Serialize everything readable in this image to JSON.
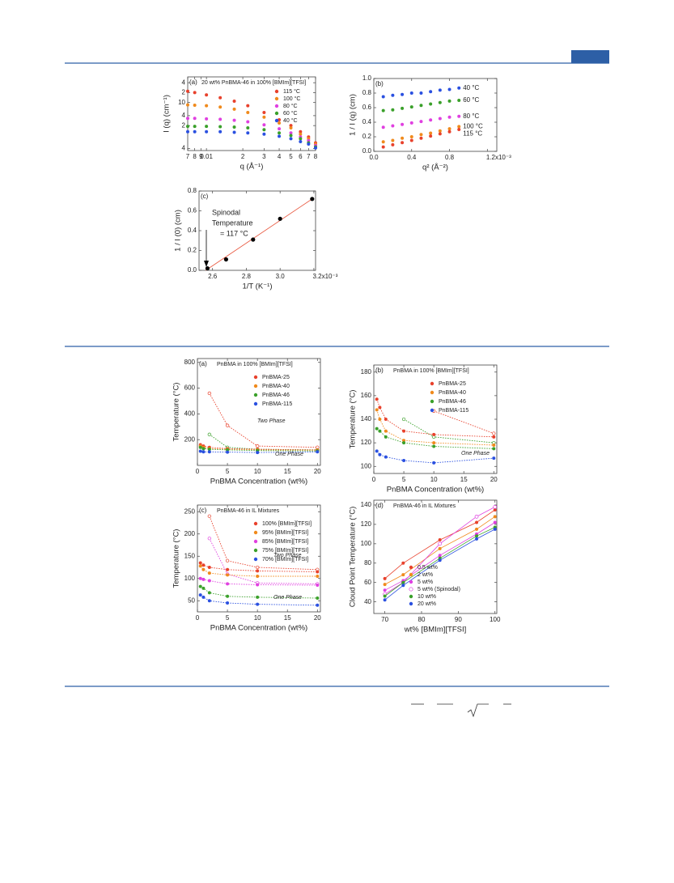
{
  "chart_data": [
    {
      "type": "scatter",
      "panel": "(a)",
      "title": "20 wt% PnBMA-46 in 100% [BMIm][TFSI]",
      "xlabel": "q (Å⁻¹)",
      "ylabel": "I (q) (cm⁻¹)",
      "xscale": "log",
      "yscale": "log",
      "xlim": [
        0.007,
        0.08
      ],
      "ylim": [
        0.35,
        60
      ],
      "xticks": [
        {
          "value": 0.007,
          "label": "7"
        },
        {
          "value": 0.008,
          "label": "8"
        },
        {
          "value": 0.009,
          "label": "9"
        },
        0.01,
        {
          "value": 0.02,
          "label": "2"
        },
        {
          "value": 0.03,
          "label": "3"
        },
        {
          "value": 0.04,
          "label": "4"
        },
        {
          "value": 0.05,
          "label": "5"
        },
        {
          "value": 0.06,
          "label": "6"
        },
        {
          "value": 0.07,
          "label": "7"
        },
        {
          "value": 0.08,
          "label": "8"
        }
      ],
      "yticks": [
        {
          "value": 0.4,
          "label": "4"
        },
        2,
        4,
        10,
        {
          "value": 20,
          "label": "2"
        },
        {
          "value": 40,
          "label": "4"
        }
      ],
      "legend": "upper right",
      "line": "none",
      "x": [
        0.007,
        0.008,
        0.01,
        0.013,
        0.017,
        0.022,
        0.03,
        0.04,
        0.05,
        0.06,
        0.07,
        0.08
      ],
      "series": [
        {
          "name": "115 °C",
          "color": "#e8412c",
          "values": [
            22,
            20,
            17,
            14,
            11,
            8,
            5,
            3,
            2,
            1.3,
            0.9,
            0.6
          ]
        },
        {
          "name": "100 °C",
          "color": "#f08a1c",
          "values": [
            8.5,
            8.3,
            8,
            7.3,
            6.3,
            5,
            3.6,
            2.4,
            1.7,
            1.1,
            0.8,
            0.55
          ]
        },
        {
          "name": "80 °C",
          "color": "#e040e0",
          "values": [
            3.3,
            3.3,
            3.2,
            3.1,
            2.9,
            2.6,
            2.1,
            1.6,
            1.2,
            0.9,
            0.7,
            0.5
          ]
        },
        {
          "name": "60 °C",
          "color": "#3aa02a",
          "values": [
            1.9,
            1.9,
            1.9,
            1.85,
            1.8,
            1.7,
            1.5,
            1.2,
            1.0,
            0.8,
            0.6,
            0.45
          ]
        },
        {
          "name": "40 °C",
          "color": "#2a50e0",
          "values": [
            1.3,
            1.3,
            1.3,
            1.3,
            1.25,
            1.2,
            1.1,
            0.95,
            0.8,
            0.65,
            0.55,
            0.42
          ]
        }
      ]
    },
    {
      "type": "scatter",
      "panel": "(b)",
      "xlabel": "q² (Å⁻²)",
      "ylabel": "1 / I (q) (cm)",
      "xlim": [
        0,
        0.0013
      ],
      "ylim": [
        0,
        1.0
      ],
      "xticks": [
        {
          "value": 0,
          "label": "0.0"
        },
        {
          "value": 0.0004,
          "label": "0.4"
        },
        {
          "value": 0.0008,
          "label": "0.8"
        },
        {
          "value": 0.0012,
          "label": "1.2x10⁻³"
        }
      ],
      "yticks": [
        {
          "value": 0,
          "label": "0.0"
        },
        0.2,
        0.4,
        0.6,
        0.8,
        {
          "value": 1,
          "label": "1.0"
        }
      ],
      "legend": "inline",
      "line": "none",
      "x": [
        0.0001,
        0.0002,
        0.0003,
        0.0004,
        0.0005,
        0.0006,
        0.0007,
        0.0008,
        0.0009
      ],
      "series": [
        {
          "name": "40 °C",
          "color": "#2a50e0",
          "values": [
            0.75,
            0.77,
            0.78,
            0.8,
            0.8,
            0.82,
            0.84,
            0.85,
            0.87
          ]
        },
        {
          "name": "60 °C",
          "color": "#3aa02a",
          "values": [
            0.56,
            0.57,
            0.59,
            0.61,
            0.63,
            0.65,
            0.67,
            0.69,
            0.7
          ]
        },
        {
          "name": "80 °C",
          "color": "#e040e0",
          "values": [
            0.33,
            0.35,
            0.37,
            0.39,
            0.41,
            0.43,
            0.45,
            0.47,
            0.48
          ]
        },
        {
          "name": "100 °C",
          "color": "#f08a1c",
          "values": [
            0.13,
            0.15,
            0.18,
            0.2,
            0.23,
            0.25,
            0.28,
            0.31,
            0.34
          ]
        },
        {
          "name": "115 °C",
          "color": "#e8412c",
          "values": [
            0.06,
            0.09,
            0.12,
            0.15,
            0.18,
            0.21,
            0.24,
            0.27,
            0.3
          ]
        }
      ]
    },
    {
      "type": "scatter",
      "panel": "(c)",
      "xlabel": "1/T (K⁻¹)",
      "ylabel": "1 / I (0) (cm)",
      "xlim": [
        0.00252,
        0.00321
      ],
      "ylim": [
        0,
        0.8
      ],
      "xticks": [
        {
          "value": 0.0026,
          "label": "2.6"
        },
        {
          "value": 0.0028,
          "label": "2.8"
        },
        {
          "value": 0.003,
          "label": "3.0"
        },
        {
          "value": 0.0032,
          "label": "3.2x10⁻³"
        }
      ],
      "yticks": [
        {
          "value": 0,
          "label": "0.0"
        },
        0.2,
        0.4,
        0.6,
        0.8
      ],
      "legend": "none",
      "line": "none",
      "annotations": [
        "Spinodal",
        "Temperature",
        "= 117 °C"
      ],
      "x": [
        0.00257,
        0.00268,
        0.00284,
        0.003,
        0.00319
      ],
      "series": [
        {
          "color": "#000000",
          "values": [
            0.02,
            0.11,
            0.31,
            0.52,
            0.72
          ]
        }
      ],
      "fit": {
        "color": "#e8553c",
        "x": [
          0.00256,
          0.00319
        ],
        "values": [
          0,
          0.72
        ]
      }
    },
    {
      "type": "scatter",
      "panel": "(a)",
      "title": "PnBMA in 100% [BMIm][TFSI]",
      "xlabel": "PnBMA Concentration (wt%)",
      "ylabel": "Temperature (°C)",
      "xlim": [
        0,
        20.5
      ],
      "ylim": [
        0,
        830
      ],
      "xticks": [
        0,
        5,
        10,
        15,
        20
      ],
      "yticks": [
        200,
        400,
        600,
        800
      ],
      "legend": "upper right",
      "line": "dotted",
      "annotations": [
        "Two Phase",
        "One Phase"
      ],
      "x": [
        0.5,
        1,
        2,
        5,
        10,
        20
      ],
      "series": [
        {
          "name": "PnBMA-25",
          "color": "#e8412c",
          "values": [
            160,
            150,
            140,
            130,
            125,
            120
          ]
        },
        {
          "name": "PnBMA-40",
          "color": "#f08a1c",
          "values": [
            150,
            140,
            130,
            125,
            120,
            118
          ]
        },
        {
          "name": "PnBMA-46",
          "color": "#3aa02a",
          "values": [
            140,
            130,
            125,
            120,
            115,
            112
          ]
        },
        {
          "name": "PnBMA-115",
          "color": "#2a50e0",
          "values": [
            110,
            105,
            105,
            103,
            100,
            105
          ]
        }
      ],
      "spinodal": [
        {
          "color": "#e8412c",
          "x": [
            2,
            5,
            10,
            20
          ],
          "values": [
            560,
            310,
            150,
            140
          ]
        },
        {
          "color": "#3aa02a",
          "x": [
            2,
            5,
            10,
            20
          ],
          "values": [
            240,
            140,
            125,
            120
          ]
        }
      ]
    },
    {
      "type": "scatter",
      "panel": "(b)",
      "title": "PnBMA in 100% [BMIm][TFSI]",
      "xlabel": "PnBMA Concentration (wt%)",
      "ylabel": "Temperature (°C)",
      "xlim": [
        0,
        20.5
      ],
      "ylim": [
        94,
        186
      ],
      "xticks": [
        0,
        5,
        10,
        15,
        20
      ],
      "yticks": [
        100,
        120,
        140,
        160,
        180
      ],
      "legend": "upper right",
      "line": "dotted",
      "annotations": [
        "One Phase"
      ],
      "x": [
        0.5,
        1,
        2,
        5,
        10,
        20
      ],
      "series": [
        {
          "name": "PnBMA-25",
          "color": "#e8412c",
          "values": [
            157,
            150,
            140,
            130,
            127,
            125
          ]
        },
        {
          "name": "PnBMA-40",
          "color": "#f08a1c",
          "values": [
            148,
            140,
            130,
            122,
            120,
            118
          ]
        },
        {
          "name": "PnBMA-46",
          "color": "#3aa02a",
          "values": [
            132,
            130,
            125,
            120,
            117,
            115
          ]
        },
        {
          "name": "PnBMA-115",
          "color": "#2a50e0",
          "values": [
            113,
            110,
            108,
            105,
            103,
            107
          ]
        }
      ],
      "spinodal": [
        {
          "color": "#e8412c",
          "x": [
            10,
            20
          ],
          "values": [
            147,
            128
          ]
        },
        {
          "color": "#3aa02a",
          "x": [
            5,
            10,
            20
          ],
          "values": [
            140,
            125,
            120
          ]
        }
      ]
    },
    {
      "type": "scatter",
      "panel": "(c)",
      "title": "PnBMA-46 in IL Mixtures",
      "xlabel": "PnBMA Concentration (wt%)",
      "ylabel": "Temperature (°C)",
      "xlim": [
        0,
        20.5
      ],
      "ylim": [
        25,
        265
      ],
      "xticks": [
        0,
        5,
        10,
        15,
        20
      ],
      "yticks": [
        50,
        100,
        150,
        200,
        250
      ],
      "legend": "upper right",
      "line": "dotted",
      "annotations": [
        "Two Phase",
        "One Phase"
      ],
      "x": [
        0.5,
        1,
        2,
        5,
        10,
        20
      ],
      "series": [
        {
          "name": "100% [BMIm][TFSI]",
          "color": "#e8412c",
          "values": [
            135,
            130,
            125,
            120,
            117,
            115
          ]
        },
        {
          "name": "95% [BMIm][TFSI]",
          "color": "#f08a1c",
          "values": [
            128,
            120,
            112,
            108,
            105,
            105
          ]
        },
        {
          "name": "85% [BMIm][TFSI]",
          "color": "#e040e0",
          "values": [
            100,
            98,
            95,
            88,
            86,
            85
          ]
        },
        {
          "name": "75% [BMIm][TFSI]",
          "color": "#3aa02a",
          "values": [
            82,
            78,
            68,
            60,
            58,
            56
          ]
        },
        {
          "name": "70% [BMIm][TFSI]",
          "color": "#2a50e0",
          "values": [
            63,
            58,
            50,
            45,
            42,
            40
          ]
        }
      ],
      "spinodal": [
        {
          "color": "#e8412c",
          "x": [
            2,
            5,
            10,
            20
          ],
          "values": [
            240,
            140,
            125,
            120
          ]
        },
        {
          "color": "#e040e0",
          "x": [
            2,
            5,
            10,
            20
          ],
          "values": [
            190,
            110,
            90,
            88
          ]
        }
      ]
    },
    {
      "type": "scatter",
      "panel": "(d)",
      "title": "PnBMA-46 in IL Mixtures",
      "xlabel": "wt% [BMIm][TFSI]",
      "ylabel": "Cloud Point Temperature (°C)",
      "xlim": [
        67,
        100.5
      ],
      "ylim": [
        28,
        145
      ],
      "xticks": [
        70,
        80,
        90,
        100
      ],
      "yticks": [
        40,
        60,
        80,
        100,
        120,
        140
      ],
      "legend": "lower right",
      "line": "solid",
      "x": [
        70,
        75,
        85,
        95,
        100
      ],
      "series": [
        {
          "name": "0.5 wt%",
          "color": "#e8412c",
          "values": [
            64,
            80,
            104,
            122,
            135
          ]
        },
        {
          "name": "2 wt%",
          "color": "#f08a1c",
          "values": [
            58,
            68,
            95,
            115,
            128
          ]
        },
        {
          "name": "5 wt%",
          "color": "#e040e0",
          "values": [
            52,
            62,
            88,
            110,
            122
          ]
        },
        {
          "name": "5 wt% (Spinodal)",
          "color": "#e040e0",
          "marker": "open",
          "values": [
            48,
            60,
            100,
            128,
            138
          ]
        },
        {
          "name": "10 wt%",
          "color": "#3aa02a",
          "values": [
            46,
            60,
            85,
            108,
            117
          ]
        },
        {
          "name": "20 wt%",
          "color": "#2a50e0",
          "values": [
            42,
            57,
            83,
            105,
            115
          ]
        }
      ]
    }
  ]
}
